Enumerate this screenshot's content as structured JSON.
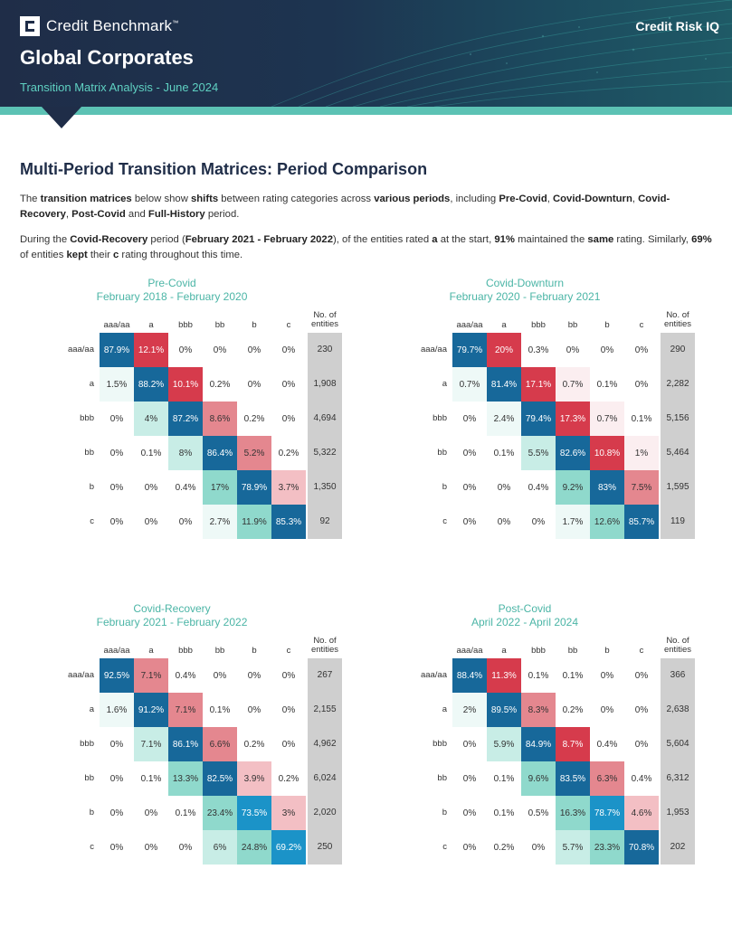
{
  "header": {
    "logo_text": "Credit Benchmark",
    "logo_mark": "™",
    "brand_right": "Credit Risk IQ",
    "title": "Global Corporates",
    "subtitle": "Transition Matrix Analysis - June 2024"
  },
  "section_title": "Multi-Period Transition Matrices: Period Comparison",
  "para1": [
    {
      "t": "The ",
      "b": false
    },
    {
      "t": "transition matrices",
      "b": true
    },
    {
      "t": " below show ",
      "b": false
    },
    {
      "t": "shifts",
      "b": true
    },
    {
      "t": " between rating categories across ",
      "b": false
    },
    {
      "t": "various periods",
      "b": true
    },
    {
      "t": ", including ",
      "b": false
    },
    {
      "t": "Pre-Covid",
      "b": true
    },
    {
      "t": ", ",
      "b": false
    },
    {
      "t": "Covid-Downturn",
      "b": true
    },
    {
      "t": ", ",
      "b": false
    },
    {
      "t": "Covid-Recovery",
      "b": true
    },
    {
      "t": ", ",
      "b": false
    },
    {
      "t": "Post-Covid",
      "b": true
    },
    {
      "t": " and ",
      "b": false
    },
    {
      "t": "Full-History",
      "b": true
    },
    {
      "t": " period.",
      "b": false
    }
  ],
  "para2": [
    {
      "t": "During the ",
      "b": false
    },
    {
      "t": "Covid-Recovery",
      "b": true
    },
    {
      "t": " period (",
      "b": false
    },
    {
      "t": "February 2021 - February 2022",
      "b": true
    },
    {
      "t": "), of the entities rated ",
      "b": false
    },
    {
      "t": "a",
      "b": true
    },
    {
      "t": " at the start, ",
      "b": false
    },
    {
      "t": "91%",
      "b": true
    },
    {
      "t": " maintained the ",
      "b": false
    },
    {
      "t": "same",
      "b": true
    },
    {
      "t": " rating. Similarly, ",
      "b": false
    },
    {
      "t": "69%",
      "b": true
    },
    {
      "t": " of entities ",
      "b": false
    },
    {
      "t": "kept",
      "b": true
    },
    {
      "t": " their ",
      "b": false
    },
    {
      "t": "c",
      "b": true
    },
    {
      "t": " rating throughout this time.",
      "b": false
    }
  ],
  "col_headers": [
    "aaa/aa",
    "a",
    "bbb",
    "bb",
    "b",
    "c"
  ],
  "row_labels": [
    "aaa/aa",
    "a",
    "bbb",
    "bb",
    "b",
    "c"
  ],
  "n_header": "No. of entities",
  "colors": {
    "dark_blue": "#17689a",
    "bright_blue": "#1b93c8",
    "red": "#d63b4c",
    "pink": "#e4878f",
    "light_pink": "#f3bfc4",
    "faint_pink": "#fbeef0",
    "teal": "#8fd9cc",
    "light_teal": "#c8ede6",
    "faint_teal": "#eef9f7",
    "gray": "#cfcfcf"
  },
  "matrices": [
    {
      "period": "Pre-Covid",
      "dates": "February 2018 - February 2020",
      "rows": [
        [
          "87.9%",
          "12.1%",
          "0%",
          "0%",
          "0%",
          "0%"
        ],
        [
          "1.5%",
          "88.2%",
          "10.1%",
          "0.2%",
          "0%",
          "0%"
        ],
        [
          "0%",
          "4%",
          "87.2%",
          "8.6%",
          "0.2%",
          "0%"
        ],
        [
          "0%",
          "0.1%",
          "8%",
          "86.4%",
          "5.2%",
          "0.2%"
        ],
        [
          "0%",
          "0%",
          "0.4%",
          "17%",
          "78.9%",
          "3.7%"
        ],
        [
          "0%",
          "0%",
          "0%",
          "2.7%",
          "11.9%",
          "85.3%"
        ]
      ],
      "fills": [
        [
          "dark_blue",
          "red",
          "",
          "",
          "",
          ""
        ],
        [
          "faint_teal",
          "dark_blue",
          "red",
          "",
          "",
          ""
        ],
        [
          "",
          "light_teal",
          "dark_blue",
          "pink",
          "",
          ""
        ],
        [
          "",
          "",
          "light_teal",
          "dark_blue",
          "pink",
          ""
        ],
        [
          "",
          "",
          "",
          "teal",
          "dark_blue",
          "light_pink"
        ],
        [
          "",
          "",
          "",
          "faint_teal",
          "teal",
          "dark_blue"
        ]
      ],
      "n": [
        "230",
        "1,908",
        "4,694",
        "5,322",
        "1,350",
        "92"
      ]
    },
    {
      "period": "Covid-Downturn",
      "dates": "February 2020 - February 2021",
      "rows": [
        [
          "79.7%",
          "20%",
          "0.3%",
          "0%",
          "0%",
          "0%"
        ],
        [
          "0.7%",
          "81.4%",
          "17.1%",
          "0.7%",
          "0.1%",
          "0%"
        ],
        [
          "0%",
          "2.4%",
          "79.4%",
          "17.3%",
          "0.7%",
          "0.1%"
        ],
        [
          "0%",
          "0.1%",
          "5.5%",
          "82.6%",
          "10.8%",
          "1%"
        ],
        [
          "0%",
          "0%",
          "0.4%",
          "9.2%",
          "83%",
          "7.5%"
        ],
        [
          "0%",
          "0%",
          "0%",
          "1.7%",
          "12.6%",
          "85.7%"
        ]
      ],
      "fills": [
        [
          "dark_blue",
          "red",
          "",
          "",
          "",
          ""
        ],
        [
          "faint_teal",
          "dark_blue",
          "red",
          "faint_pink",
          "",
          ""
        ],
        [
          "",
          "faint_teal",
          "dark_blue",
          "red",
          "faint_pink",
          ""
        ],
        [
          "",
          "",
          "light_teal",
          "dark_blue",
          "red",
          "faint_pink"
        ],
        [
          "",
          "",
          "",
          "teal",
          "dark_blue",
          "pink"
        ],
        [
          "",
          "",
          "",
          "faint_teal",
          "teal",
          "dark_blue"
        ]
      ],
      "n": [
        "290",
        "2,282",
        "5,156",
        "5,464",
        "1,595",
        "119"
      ]
    },
    {
      "period": "Covid-Recovery",
      "dates": "February 2021 - February 2022",
      "rows": [
        [
          "92.5%",
          "7.1%",
          "0.4%",
          "0%",
          "0%",
          "0%"
        ],
        [
          "1.6%",
          "91.2%",
          "7.1%",
          "0.1%",
          "0%",
          "0%"
        ],
        [
          "0%",
          "7.1%",
          "86.1%",
          "6.6%",
          "0.2%",
          "0%"
        ],
        [
          "0%",
          "0.1%",
          "13.3%",
          "82.5%",
          "3.9%",
          "0.2%"
        ],
        [
          "0%",
          "0%",
          "0.1%",
          "23.4%",
          "73.5%",
          "3%"
        ],
        [
          "0%",
          "0%",
          "0%",
          "6%",
          "24.8%",
          "69.2%"
        ]
      ],
      "fills": [
        [
          "dark_blue",
          "pink",
          "",
          "",
          "",
          ""
        ],
        [
          "faint_teal",
          "dark_blue",
          "pink",
          "",
          "",
          ""
        ],
        [
          "",
          "light_teal",
          "dark_blue",
          "pink",
          "",
          ""
        ],
        [
          "",
          "",
          "teal",
          "dark_blue",
          "light_pink",
          ""
        ],
        [
          "",
          "",
          "",
          "teal",
          "bright_blue",
          "light_pink"
        ],
        [
          "",
          "",
          "",
          "light_teal",
          "teal",
          "bright_blue"
        ]
      ],
      "n": [
        "267",
        "2,155",
        "4,962",
        "6,024",
        "2,020",
        "250"
      ]
    },
    {
      "period": "Post-Covid",
      "dates": "April 2022 - April 2024",
      "rows": [
        [
          "88.4%",
          "11.3%",
          "0.1%",
          "0.1%",
          "0%",
          "0%"
        ],
        [
          "2%",
          "89.5%",
          "8.3%",
          "0.2%",
          "0%",
          "0%"
        ],
        [
          "0%",
          "5.9%",
          "84.9%",
          "8.7%",
          "0.4%",
          "0%"
        ],
        [
          "0%",
          "0.1%",
          "9.6%",
          "83.5%",
          "6.3%",
          "0.4%"
        ],
        [
          "0%",
          "0.1%",
          "0.5%",
          "16.3%",
          "78.7%",
          "4.6%"
        ],
        [
          "0%",
          "0.2%",
          "0%",
          "5.7%",
          "23.3%",
          "70.8%"
        ]
      ],
      "fills": [
        [
          "dark_blue",
          "red",
          "",
          "",
          "",
          ""
        ],
        [
          "faint_teal",
          "dark_blue",
          "pink",
          "",
          "",
          ""
        ],
        [
          "",
          "light_teal",
          "dark_blue",
          "red",
          "",
          ""
        ],
        [
          "",
          "",
          "teal",
          "dark_blue",
          "pink",
          ""
        ],
        [
          "",
          "",
          "",
          "teal",
          "bright_blue",
          "light_pink"
        ],
        [
          "",
          "",
          "",
          "light_teal",
          "teal",
          "dark_blue"
        ]
      ],
      "n": [
        "366",
        "2,638",
        "5,604",
        "6,312",
        "1,953",
        "202"
      ]
    }
  ]
}
